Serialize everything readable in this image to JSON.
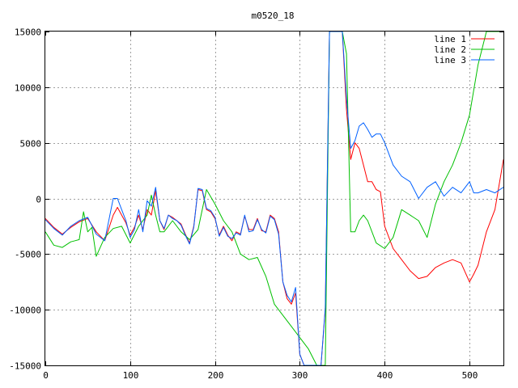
{
  "chart_data": {
    "type": "line",
    "title": "m0520_18",
    "xlabel": "",
    "ylabel": "",
    "xlim": [
      0,
      540
    ],
    "ylim": [
      -15000,
      15000
    ],
    "xticks": [
      0,
      100,
      200,
      300,
      400,
      500
    ],
    "yticks": [
      -15000,
      -10000,
      -5000,
      0,
      5000,
      10000,
      15000
    ],
    "grid": true,
    "legend_position": "top-right",
    "series": [
      {
        "name": "line 1",
        "color": "#ff0000",
        "x": [
          0,
          10,
          20,
          30,
          40,
          50,
          60,
          70,
          80,
          85,
          90,
          95,
          100,
          105,
          110,
          115,
          120,
          125,
          130,
          135,
          140,
          145,
          150,
          155,
          160,
          165,
          170,
          175,
          180,
          185,
          190,
          195,
          200,
          205,
          210,
          215,
          220,
          225,
          230,
          235,
          240,
          245,
          250,
          255,
          260,
          265,
          270,
          275,
          280,
          285,
          290,
          295,
          300,
          305,
          310,
          315,
          320,
          325,
          330,
          335,
          340,
          345,
          350,
          355,
          360,
          365,
          370,
          375,
          380,
          385,
          390,
          395,
          400,
          410,
          420,
          430,
          440,
          450,
          460,
          470,
          480,
          490,
          500,
          505,
          510,
          520,
          530,
          540
        ],
        "y": [
          -1800,
          -2600,
          -3200,
          -2600,
          -2100,
          -1800,
          -3000,
          -3800,
          -1500,
          -800,
          -1500,
          -2200,
          -3300,
          -2600,
          -1500,
          -2800,
          -1000,
          -1500,
          700,
          -2000,
          -2800,
          -1500,
          -1700,
          -2000,
          -2300,
          -3200,
          -4000,
          -2500,
          800,
          700,
          -1000,
          -1200,
          -1800,
          -3300,
          -2500,
          -3300,
          -3800,
          -3000,
          -3200,
          -1600,
          -2800,
          -2800,
          -1800,
          -2900,
          -3000,
          -1500,
          -1800,
          -3000,
          -7500,
          -9000,
          -9500,
          -8500,
          -14000,
          -15000,
          -15000,
          -15000,
          -15000,
          -15000,
          -10000,
          15000,
          15000,
          15000,
          15000,
          8000,
          3500,
          5000,
          4500,
          3000,
          1500,
          1500,
          800,
          600,
          -2500,
          -4500,
          -5500,
          -6500,
          -7200,
          -7000,
          -6200,
          -5800,
          -5500,
          -5800,
          -7500,
          -6800,
          -6000,
          -3000,
          -1000,
          3500
        ]
      },
      {
        "name": "line 2",
        "color": "#00c000",
        "x": [
          0,
          10,
          20,
          30,
          35,
          40,
          45,
          50,
          55,
          60,
          70,
          80,
          90,
          100,
          110,
          120,
          125,
          130,
          135,
          140,
          150,
          160,
          170,
          180,
          190,
          200,
          210,
          220,
          230,
          240,
          250,
          260,
          270,
          280,
          290,
          300,
          310,
          320,
          330,
          335,
          340,
          345,
          350,
          355,
          360,
          365,
          370,
          375,
          380,
          390,
          400,
          410,
          420,
          430,
          440,
          450,
          460,
          470,
          480,
          490,
          500,
          510,
          520,
          530,
          540
        ],
        "y": [
          -3000,
          -4200,
          -4400,
          -3900,
          -3800,
          -3700,
          -1200,
          -3000,
          -2600,
          -5200,
          -3500,
          -2700,
          -2500,
          -4000,
          -2500,
          -1500,
          300,
          -1500,
          -3000,
          -3000,
          -2000,
          -3000,
          -3700,
          -2800,
          800,
          -500,
          -2000,
          -3000,
          -5000,
          -5500,
          -5300,
          -7000,
          -9500,
          -10500,
          -11500,
          -12500,
          -13500,
          -15000,
          -15000,
          15000,
          15000,
          15000,
          15000,
          13000,
          -3000,
          -3000,
          -2000,
          -1500,
          -2000,
          -4000,
          -4500,
          -3500,
          -1000,
          -1500,
          -2000,
          -3500,
          -500,
          1500,
          3000,
          5000,
          7500,
          12000,
          15000,
          15000,
          15000
        ]
      },
      {
        "name": "line 3",
        "color": "#0060ff",
        "x": [
          0,
          10,
          20,
          30,
          40,
          50,
          60,
          70,
          80,
          85,
          90,
          95,
          100,
          105,
          110,
          115,
          120,
          125,
          130,
          135,
          140,
          145,
          150,
          155,
          160,
          165,
          170,
          175,
          180,
          185,
          190,
          195,
          200,
          205,
          210,
          215,
          220,
          225,
          230,
          235,
          240,
          245,
          250,
          255,
          260,
          265,
          270,
          275,
          280,
          285,
          290,
          295,
          300,
          305,
          310,
          315,
          320,
          325,
          330,
          335,
          340,
          345,
          350,
          355,
          360,
          365,
          370,
          375,
          380,
          385,
          390,
          395,
          400,
          410,
          420,
          430,
          440,
          450,
          460,
          470,
          480,
          490,
          500,
          505,
          510,
          520,
          530,
          540
        ],
        "y": [
          -1900,
          -2700,
          -3300,
          -2500,
          -2000,
          -1700,
          -3200,
          -3800,
          0,
          0,
          -1000,
          -2000,
          -3500,
          -2800,
          -1000,
          -3000,
          -200,
          -700,
          1000,
          -2000,
          -2700,
          -1500,
          -1800,
          -2000,
          -2400,
          -3300,
          -4100,
          -2600,
          900,
          800,
          -900,
          -1100,
          -1700,
          -3400,
          -2600,
          -3400,
          -3600,
          -3100,
          -3300,
          -1500,
          -3000,
          -2900,
          -1900,
          -2800,
          -3100,
          -1600,
          -1900,
          -3200,
          -7500,
          -8700,
          -9300,
          -8000,
          -14000,
          -15000,
          -15000,
          -15000,
          -15000,
          -15000,
          -9800,
          15000,
          15000,
          15000,
          15000,
          9000,
          4500,
          5200,
          6500,
          6800,
          6200,
          5500,
          5800,
          5800,
          5000,
          3000,
          2000,
          1500,
          0,
          1000,
          1500,
          200,
          1000,
          500,
          1500,
          500,
          500,
          800,
          500,
          1000
        ]
      }
    ]
  }
}
